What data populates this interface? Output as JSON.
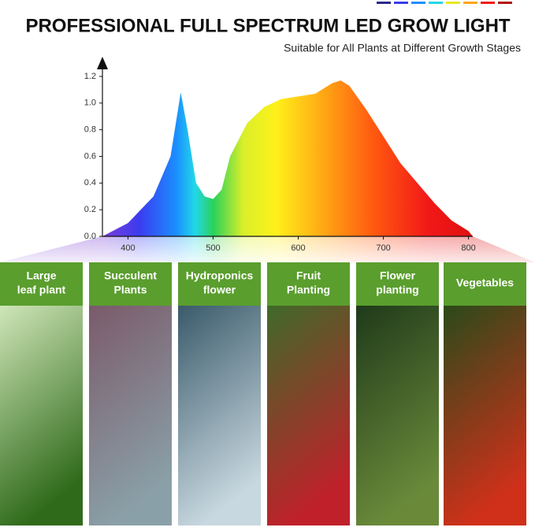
{
  "chart_data": {
    "type": "area",
    "title": "PROFESSIONAL FULL SPECTRUM LED GROW LIGHT",
    "subtitle": "Suitable for All Plants at Different Growth Stages",
    "x": [
      370,
      400,
      430,
      450,
      462,
      470,
      480,
      490,
      500,
      510,
      520,
      540,
      560,
      580,
      600,
      620,
      640,
      650,
      660,
      680,
      700,
      720,
      740,
      760,
      780,
      800,
      805
    ],
    "values": [
      0,
      0.1,
      0.3,
      0.6,
      1.08,
      0.8,
      0.4,
      0.3,
      0.28,
      0.35,
      0.6,
      0.85,
      0.97,
      1.03,
      1.05,
      1.07,
      1.15,
      1.17,
      1.13,
      0.95,
      0.75,
      0.55,
      0.4,
      0.25,
      0.12,
      0.04,
      0
    ],
    "xlim": [
      370,
      805
    ],
    "xticks": [
      400,
      500,
      600,
      700,
      800
    ],
    "ylim": [
      0,
      1.2
    ],
    "yticks": [
      {
        "value": 0,
        "label": "0.0"
      },
      {
        "value": 0.2,
        "label": "0.2"
      },
      {
        "value": 0.4,
        "label": "0.4"
      },
      {
        "value": 0.6,
        "label": "0.6"
      },
      {
        "value": 0.8,
        "label": "0.8"
      },
      {
        "value": 1,
        "label": "1.0"
      },
      {
        "value": 1.2,
        "label": "1.2"
      }
    ]
  },
  "panels": [
    {
      "lines": [
        "Large",
        "leaf plant"
      ]
    },
    {
      "lines": [
        "Succulent",
        "Plants"
      ]
    },
    {
      "lines": [
        "Hydroponics",
        "flower"
      ]
    },
    {
      "lines": [
        "Fruit",
        "Planting"
      ]
    },
    {
      "lines": [
        "Flower",
        "planting"
      ]
    },
    {
      "lines": [
        "Vegetables"
      ]
    }
  ]
}
